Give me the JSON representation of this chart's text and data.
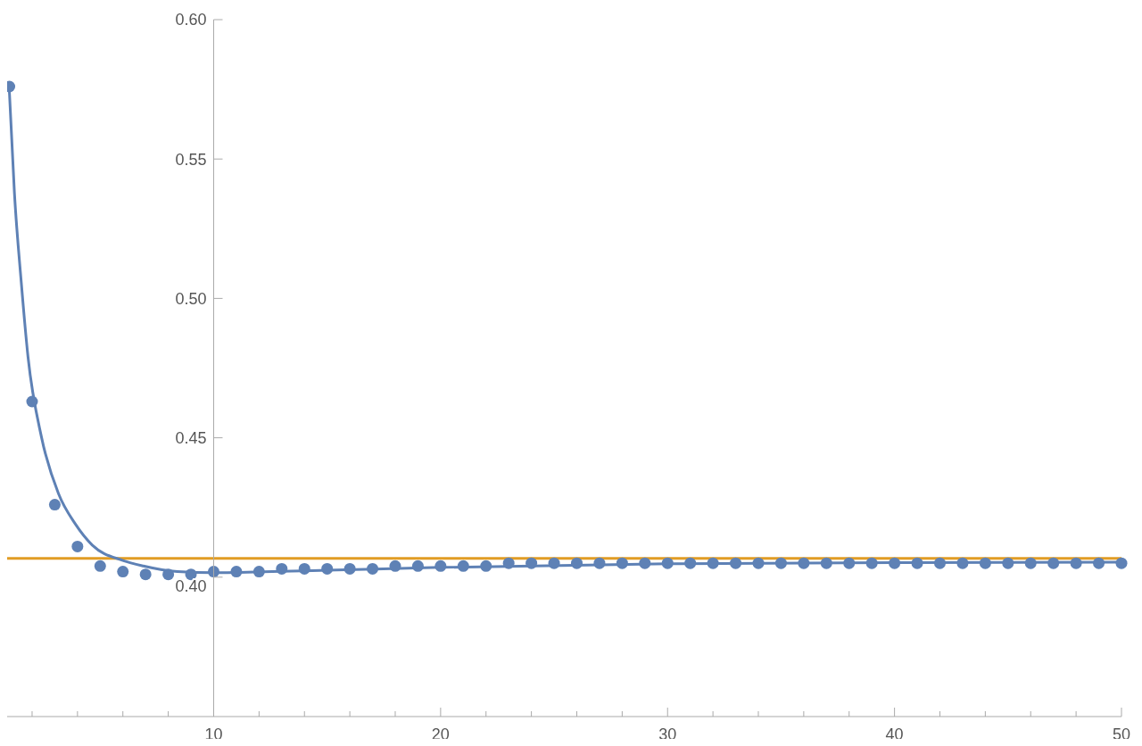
{
  "chart_data": {
    "type": "scatter",
    "xlim": [
      0.9,
      50
    ],
    "ylim": [
      0.35,
      0.6
    ],
    "xticks": [
      {
        "value": 2,
        "label": null
      },
      {
        "value": 4,
        "label": null
      },
      {
        "value": 6,
        "label": null
      },
      {
        "value": 8,
        "label": null
      },
      10,
      {
        "value": 12,
        "label": null
      },
      {
        "value": 14,
        "label": null
      },
      {
        "value": 16,
        "label": null
      },
      {
        "value": 18,
        "label": null
      },
      20,
      {
        "value": 22,
        "label": null
      },
      {
        "value": 24,
        "label": null
      },
      {
        "value": 26,
        "label": null
      },
      {
        "value": 28,
        "label": null
      },
      30,
      {
        "value": 32,
        "label": null
      },
      {
        "value": 34,
        "label": null
      },
      {
        "value": 36,
        "label": null
      },
      {
        "value": 38,
        "label": null
      },
      40,
      {
        "value": 42,
        "label": null
      },
      {
        "value": 44,
        "label": null
      },
      {
        "value": 46,
        "label": null
      },
      {
        "value": 48,
        "label": null
      },
      50
    ],
    "yticks": [
      {
        "value": 0.4,
        "label": "0.40"
      },
      {
        "value": 0.45,
        "label": "0.45"
      },
      {
        "value": 0.5,
        "label": "0.50"
      },
      {
        "value": 0.55,
        "label": "0.55"
      },
      {
        "value": 0.6,
        "label": "0.60"
      }
    ],
    "grid": false,
    "marker": "circle",
    "ref_lines": [
      {
        "axis": "y",
        "value": 0.4067,
        "color": "#e19c24"
      }
    ],
    "series": [
      {
        "color": "#5e81b5",
        "x": [
          1,
          2,
          3,
          4,
          5,
          6,
          7,
          8,
          9,
          10,
          11,
          12,
          13,
          14,
          15,
          16,
          17,
          18,
          19,
          20,
          21,
          22,
          23,
          24,
          25,
          26,
          27,
          28,
          29,
          30,
          31,
          32,
          33,
          34,
          35,
          36,
          37,
          38,
          39,
          40,
          41,
          42,
          43,
          44,
          45,
          46,
          47,
          48,
          49,
          50
        ],
        "values": [
          0.576,
          0.463,
          0.426,
          0.411,
          0.404,
          0.402,
          0.401,
          0.401,
          0.401,
          0.402,
          0.402,
          0.402,
          0.403,
          0.403,
          0.403,
          0.403,
          0.403,
          0.404,
          0.404,
          0.404,
          0.404,
          0.404,
          0.405,
          0.405,
          0.405,
          0.405,
          0.405,
          0.405,
          0.405,
          0.405,
          0.405,
          0.405,
          0.405,
          0.405,
          0.405,
          0.405,
          0.405,
          0.405,
          0.405,
          0.405,
          0.405,
          0.405,
          0.405,
          0.405,
          0.405,
          0.405,
          0.405,
          0.405,
          0.405,
          0.405
        ]
      },
      {
        "type": "line",
        "color": "#5e81b5",
        "marker": "none",
        "x": [
          1,
          1.22,
          1.52,
          1.82,
          2.42,
          3.16,
          3.91,
          4.65,
          6,
          6.9,
          8.4,
          10,
          15,
          20,
          30,
          40,
          50
        ],
        "values": [
          0.574,
          0.538,
          0.506,
          0.479,
          0.45,
          0.43,
          0.419,
          0.4115,
          0.406,
          0.404,
          0.402,
          0.4016,
          0.4025,
          0.4035,
          0.4048,
          0.4052,
          0.4054
        ]
      }
    ]
  }
}
